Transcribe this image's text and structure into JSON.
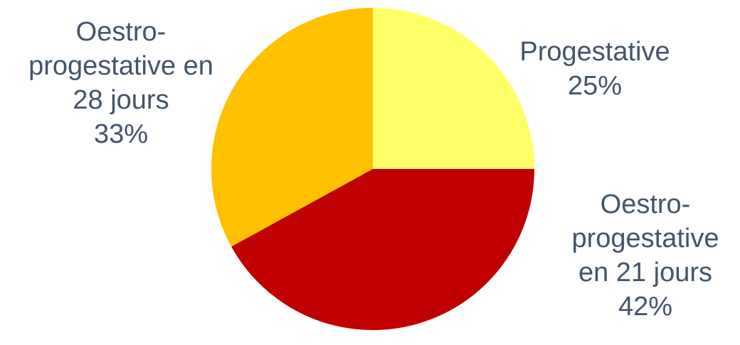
{
  "chart_data": {
    "type": "pie",
    "title": "",
    "slices": [
      {
        "label_lines": [
          "Progestative"
        ],
        "percent_label": "25%",
        "value": 25,
        "color": "#FFFF66"
      },
      {
        "label_lines": [
          "Oestro-",
          "progestative",
          "en 21 jours"
        ],
        "percent_label": "42%",
        "value": 42,
        "color": "#C00000"
      },
      {
        "label_lines": [
          "Oestro-",
          "progestative en",
          "28 jours"
        ],
        "percent_label": "33%",
        "value": 33,
        "color": "#FFC000"
      }
    ],
    "label_color": "#44546A",
    "start_angle": "12 o'clock",
    "direction": "clockwise",
    "legend": "none"
  }
}
